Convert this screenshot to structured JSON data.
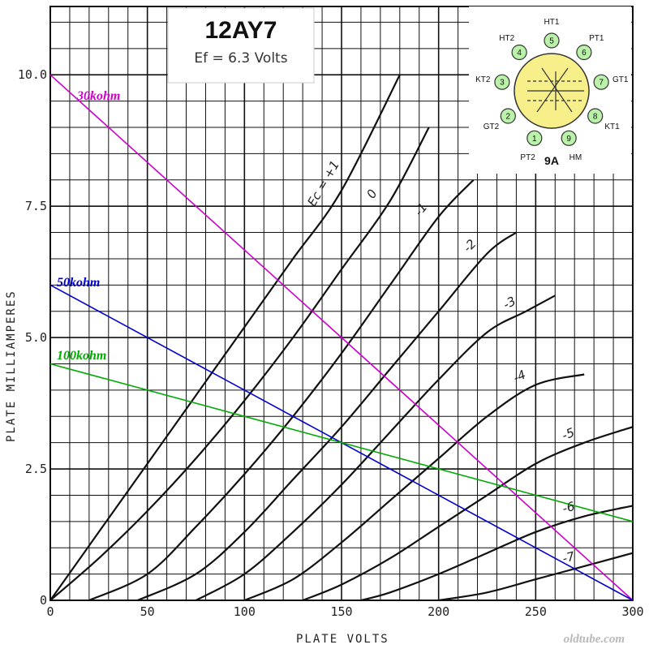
{
  "title": {
    "tube": "12AY7",
    "heater": "Ef = 6.3 Volts"
  },
  "watermark": "oldtube.com",
  "base": {
    "label": "9A",
    "pins": [
      {
        "num": "1",
        "name": "PT2"
      },
      {
        "num": "2",
        "name": "GT2"
      },
      {
        "num": "3",
        "name": "KT2"
      },
      {
        "num": "4",
        "name": "HT2"
      },
      {
        "num": "5",
        "name": "HT1"
      },
      {
        "num": "6",
        "name": "PT1"
      },
      {
        "num": "7",
        "name": "GT1"
      },
      {
        "num": "8",
        "name": "KT1"
      },
      {
        "num": "9",
        "name": "HM"
      }
    ],
    "colors": {
      "pin_fill": "#b9f2a8",
      "envelope_fill": "#f7f08a"
    }
  },
  "chart_data": {
    "type": "line",
    "xlabel": "PLATE VOLTS",
    "ylabel": "PLATE MILLIAMPERES",
    "xlim": [
      0,
      300
    ],
    "ylim": [
      0,
      11.3
    ],
    "x_ticks": [
      "0",
      "50",
      "100",
      "150",
      "200",
      "250",
      "300"
    ],
    "y_ticks": [
      "0",
      "2.5",
      "5.0",
      "7.5",
      "10.0"
    ],
    "grid": true,
    "series": [
      {
        "name": "Ec = +1",
        "label": "Ec = +1",
        "points": [
          [
            0,
            0
          ],
          [
            25,
            1.3
          ],
          [
            50,
            2.6
          ],
          [
            75,
            3.9
          ],
          [
            100,
            5.2
          ],
          [
            125,
            6.5
          ],
          [
            150,
            7.8
          ],
          [
            180,
            10.0
          ]
        ]
      },
      {
        "name": "0",
        "label": "0",
        "points": [
          [
            0,
            0
          ],
          [
            25,
            0.8
          ],
          [
            50,
            1.7
          ],
          [
            75,
            2.7
          ],
          [
            100,
            3.8
          ],
          [
            125,
            5.0
          ],
          [
            150,
            6.3
          ],
          [
            175,
            7.6
          ],
          [
            195,
            9.0
          ]
        ]
      },
      {
        "name": "-1",
        "label": "-1",
        "points": [
          [
            20,
            0
          ],
          [
            50,
            0.5
          ],
          [
            75,
            1.4
          ],
          [
            100,
            2.4
          ],
          [
            125,
            3.5
          ],
          [
            150,
            4.7
          ],
          [
            175,
            6.0
          ],
          [
            200,
            7.3
          ],
          [
            218,
            8.0
          ]
        ]
      },
      {
        "name": "-2",
        "label": "-2",
        "points": [
          [
            45,
            0
          ],
          [
            75,
            0.5
          ],
          [
            100,
            1.3
          ],
          [
            125,
            2.3
          ],
          [
            150,
            3.3
          ],
          [
            175,
            4.4
          ],
          [
            200,
            5.5
          ],
          [
            225,
            6.6
          ],
          [
            240,
            7.0
          ]
        ]
      },
      {
        "name": "-3",
        "label": "-3",
        "points": [
          [
            75,
            0
          ],
          [
            100,
            0.5
          ],
          [
            125,
            1.3
          ],
          [
            150,
            2.2
          ],
          [
            175,
            3.2
          ],
          [
            200,
            4.2
          ],
          [
            225,
            5.1
          ],
          [
            245,
            5.5
          ],
          [
            260,
            5.8
          ]
        ]
      },
      {
        "name": "-4",
        "label": "-4",
        "points": [
          [
            100,
            0
          ],
          [
            125,
            0.4
          ],
          [
            150,
            1.1
          ],
          [
            175,
            1.9
          ],
          [
            200,
            2.7
          ],
          [
            225,
            3.5
          ],
          [
            250,
            4.1
          ],
          [
            275,
            4.3
          ]
        ]
      },
      {
        "name": "-5",
        "label": "-5",
        "points": [
          [
            130,
            0
          ],
          [
            150,
            0.3
          ],
          [
            175,
            0.8
          ],
          [
            200,
            1.4
          ],
          [
            225,
            2.0
          ],
          [
            250,
            2.6
          ],
          [
            275,
            3.0
          ],
          [
            300,
            3.3
          ]
        ]
      },
      {
        "name": "-6",
        "label": "-6",
        "points": [
          [
            160,
            0
          ],
          [
            175,
            0.15
          ],
          [
            200,
            0.5
          ],
          [
            225,
            0.9
          ],
          [
            250,
            1.3
          ],
          [
            275,
            1.6
          ],
          [
            300,
            1.8
          ]
        ]
      },
      {
        "name": "-7",
        "label": "-7",
        "points": [
          [
            200,
            0
          ],
          [
            225,
            0.15
          ],
          [
            250,
            0.4
          ],
          [
            275,
            0.65
          ],
          [
            300,
            0.9
          ]
        ]
      }
    ],
    "load_lines": [
      {
        "name": "30kohm",
        "label": "30kohm",
        "color": "#cc00cc",
        "x": [
          0,
          300
        ],
        "y": [
          10.0,
          0
        ]
      },
      {
        "name": "50kohm",
        "label": "50kohm",
        "color": "#0000cc",
        "x": [
          0,
          300
        ],
        "y": [
          6.0,
          0
        ]
      },
      {
        "name": "100kohm",
        "label": "100kohm",
        "color": "#00aa00",
        "x": [
          0,
          300
        ],
        "y": [
          4.5,
          1.5
        ]
      }
    ]
  }
}
